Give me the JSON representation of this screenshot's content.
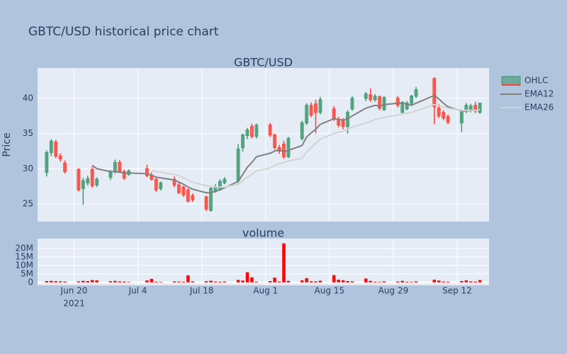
{
  "title": "GBTC/USD historical price chart",
  "chart_data": [
    {
      "type": "candlestick",
      "title": "GBTC/USD",
      "ylabel": "Price",
      "name": "OHLC",
      "increasing_color": "#3d9970",
      "decreasing_color": "#ff4136",
      "x": [
        "2021-06-14",
        "2021-06-15",
        "2021-06-16",
        "2021-06-17",
        "2021-06-18",
        "2021-06-21",
        "2021-06-22",
        "2021-06-23",
        "2021-06-24",
        "2021-06-25",
        "2021-06-28",
        "2021-06-29",
        "2021-06-30",
        "2021-07-01",
        "2021-07-02",
        "2021-07-06",
        "2021-07-07",
        "2021-07-08",
        "2021-07-09",
        "2021-07-12",
        "2021-07-13",
        "2021-07-14",
        "2021-07-15",
        "2021-07-16",
        "2021-07-19",
        "2021-07-20",
        "2021-07-21",
        "2021-07-22",
        "2021-07-23",
        "2021-07-26",
        "2021-07-27",
        "2021-07-28",
        "2021-07-29",
        "2021-07-30",
        "2021-08-02",
        "2021-08-03",
        "2021-08-04",
        "2021-08-05",
        "2021-08-06",
        "2021-08-09",
        "2021-08-10",
        "2021-08-11",
        "2021-08-12",
        "2021-08-13",
        "2021-08-16",
        "2021-08-17",
        "2021-08-18",
        "2021-08-19",
        "2021-08-20",
        "2021-08-23",
        "2021-08-24",
        "2021-08-25",
        "2021-08-26",
        "2021-08-27",
        "2021-08-30",
        "2021-08-31",
        "2021-09-01",
        "2021-09-02",
        "2021-09-03",
        "2021-09-07",
        "2021-09-08",
        "2021-09-09",
        "2021-09-10",
        "2021-09-13",
        "2021-09-14",
        "2021-09-15",
        "2021-09-16",
        "2021-09-17"
      ],
      "open": [
        29.5,
        32.3,
        33.8,
        31.8,
        30.8,
        29.9,
        27.2,
        28.0,
        29.9,
        27.7,
        28.8,
        29.6,
        30.9,
        29.6,
        29.2,
        30.0,
        29.0,
        28.5,
        27.2,
        28.5,
        27.7,
        27.4,
        27.0,
        26.2,
        26.0,
        24.1,
        26.8,
        27.0,
        28.0,
        28.3,
        33.0,
        34.7,
        36.0,
        34.6,
        36.2,
        34.8,
        33.0,
        33.5,
        31.7,
        34.3,
        36.5,
        39.0,
        39.2,
        38.0,
        38.5,
        37.0,
        36.8,
        36.0,
        38.5,
        40.0,
        40.5,
        39.8,
        40.2,
        38.4,
        40.0,
        38.0,
        38.5,
        39.3,
        40.3,
        42.8,
        38.6,
        38.0,
        37.4,
        36.5,
        38.2,
        38.3,
        39.0,
        38.0
      ],
      "high": [
        32.6,
        34.2,
        34.1,
        32.2,
        31.2,
        30.1,
        28.7,
        29.0,
        30.3,
        28.8,
        29.8,
        31.3,
        31.2,
        29.9,
        29.9,
        30.6,
        29.5,
        28.8,
        28.2,
        28.9,
        28.1,
        27.6,
        27.2,
        26.5,
        26.2,
        27.5,
        27.8,
        28.5,
        28.8,
        33.5,
        35.0,
        35.8,
        36.4,
        36.4,
        36.5,
        35.0,
        33.4,
        34.0,
        34.5,
        36.8,
        39.3,
        39.4,
        39.8,
        40.2,
        38.9,
        37.4,
        37.2,
        38.3,
        40.3,
        40.9,
        41.4,
        40.6,
        40.4,
        40.3,
        40.3,
        39.6,
        39.6,
        40.5,
        41.6,
        43.0,
        39.2,
        38.3,
        37.7,
        38.3,
        39.3,
        39.2,
        39.5,
        39.4
      ],
      "low": [
        28.9,
        31.8,
        31.5,
        31.0,
        29.3,
        26.8,
        24.9,
        27.6,
        27.3,
        27.4,
        28.4,
        29.3,
        29.4,
        28.4,
        29.0,
        28.8,
        28.3,
        26.7,
        26.9,
        27.4,
        26.4,
        26.0,
        25.2,
        25.3,
        24.0,
        23.9,
        26.6,
        26.9,
        27.8,
        28.0,
        32.4,
        34.2,
        34.3,
        34.3,
        34.5,
        32.7,
        32.1,
        31.4,
        31.5,
        34.0,
        36.2,
        37.3,
        35.0,
        37.7,
        36.8,
        35.9,
        35.6,
        35.0,
        38.2,
        39.6,
        39.5,
        39.5,
        38.3,
        38.2,
        38.7,
        37.8,
        38.3,
        39.0,
        40.0,
        36.3,
        37.2,
        36.9,
        36.3,
        35.2,
        37.9,
        38.0,
        37.9,
        37.8
      ],
      "close": [
        32.3,
        33.9,
        31.8,
        31.4,
        29.6,
        27.0,
        28.3,
        28.6,
        27.6,
        28.5,
        29.6,
        30.9,
        29.6,
        28.7,
        29.7,
        29.0,
        28.5,
        27.0,
        28.0,
        27.7,
        26.6,
        26.3,
        25.4,
        25.6,
        24.3,
        27.2,
        27.4,
        28.2,
        28.5,
        32.8,
        34.8,
        35.5,
        34.6,
        36.2,
        34.8,
        33.0,
        32.5,
        31.7,
        34.3,
        36.5,
        39.0,
        37.6,
        38.0,
        39.8,
        37.0,
        36.2,
        36.0,
        38.0,
        40.0,
        40.6,
        39.8,
        40.3,
        38.6,
        40.1,
        39.0,
        39.4,
        39.3,
        40.3,
        41.2,
        38.8,
        37.5,
        37.2,
        36.6,
        38.0,
        39.0,
        38.9,
        38.2,
        39.3
      ],
      "series": [
        {
          "name": "EMA12",
          "color": "#808080",
          "values": [
            null,
            null,
            null,
            null,
            null,
            null,
            null,
            null,
            30.5,
            30.0,
            29.6,
            29.6,
            29.5,
            29.4,
            29.4,
            29.3,
            29.1,
            28.8,
            28.7,
            28.4,
            28.1,
            27.8,
            27.4,
            27.1,
            26.6,
            26.6,
            26.8,
            27.0,
            27.3,
            28.2,
            29.2,
            30.2,
            30.9,
            31.7,
            32.2,
            32.5,
            32.7,
            32.4,
            32.6,
            33.3,
            34.5,
            35.1,
            35.6,
            36.3,
            37.1,
            37.0,
            36.9,
            37.1,
            37.5,
            38.6,
            38.8,
            39.0,
            38.9,
            39.1,
            39.3,
            39.3,
            39.2,
            39.0,
            39.3,
            40.4,
            39.9,
            39.3,
            38.8,
            38.2,
            38.2,
            38.3,
            38.3,
            38.4
          ]
        },
        {
          "name": "EMA26",
          "color": "#d3d3d3",
          "values": [
            null,
            null,
            null,
            null,
            null,
            null,
            null,
            null,
            null,
            null,
            null,
            null,
            null,
            null,
            null,
            null,
            29.8,
            29.6,
            29.5,
            29.2,
            29.0,
            28.7,
            28.4,
            28.1,
            27.6,
            27.5,
            27.4,
            27.4,
            27.4,
            27.8,
            28.3,
            28.8,
            29.2,
            29.7,
            30.1,
            30.5,
            30.7,
            30.9,
            31.1,
            31.5,
            32.4,
            33.0,
            33.6,
            34.2,
            35.0,
            35.2,
            35.3,
            35.6,
            35.9,
            36.5,
            36.7,
            37.0,
            37.1,
            37.3,
            37.6,
            37.8,
            37.9,
            38.0,
            38.2,
            39.1,
            39.0,
            38.8,
            38.6,
            38.3,
            38.3,
            38.3,
            38.3,
            38.4
          ]
        }
      ],
      "xlim": [
        "2021-06-12",
        "2021-09-19"
      ],
      "ylim": [
        22.5,
        44.3
      ],
      "yticks": [
        25,
        30,
        35,
        40
      ],
      "grid": true,
      "legend": "top-right"
    },
    {
      "type": "bar",
      "title": "volume",
      "color": "#ff0000",
      "x_year": "2021",
      "x": [
        "2021-06-14",
        "2021-06-15",
        "2021-06-16",
        "2021-06-17",
        "2021-06-18",
        "2021-06-21",
        "2021-06-22",
        "2021-06-23",
        "2021-06-24",
        "2021-06-25",
        "2021-06-28",
        "2021-06-29",
        "2021-06-30",
        "2021-07-01",
        "2021-07-02",
        "2021-07-06",
        "2021-07-07",
        "2021-07-08",
        "2021-07-09",
        "2021-07-12",
        "2021-07-13",
        "2021-07-14",
        "2021-07-15",
        "2021-07-16",
        "2021-07-19",
        "2021-07-20",
        "2021-07-21",
        "2021-07-22",
        "2021-07-23",
        "2021-07-26",
        "2021-07-27",
        "2021-07-28",
        "2021-07-29",
        "2021-07-30",
        "2021-08-02",
        "2021-08-03",
        "2021-08-04",
        "2021-08-05",
        "2021-08-06",
        "2021-08-09",
        "2021-08-10",
        "2021-08-11",
        "2021-08-12",
        "2021-08-13",
        "2021-08-16",
        "2021-08-17",
        "2021-08-18",
        "2021-08-19",
        "2021-08-20",
        "2021-08-23",
        "2021-08-24",
        "2021-08-25",
        "2021-08-26",
        "2021-08-27",
        "2021-08-30",
        "2021-08-31",
        "2021-09-01",
        "2021-09-02",
        "2021-09-03",
        "2021-09-07",
        "2021-09-08",
        "2021-09-09",
        "2021-09-10",
        "2021-09-13",
        "2021-09-14",
        "2021-09-15",
        "2021-09-16",
        "2021-09-17"
      ],
      "values": [
        800000,
        900000,
        700000,
        600000,
        500000,
        600000,
        900000,
        800000,
        1400000,
        1200000,
        700000,
        900000,
        600000,
        500000,
        300000,
        1200000,
        2100000,
        400000,
        300000,
        600000,
        500000,
        400000,
        4200000,
        600000,
        700000,
        1000000,
        500000,
        400000,
        500000,
        1500000,
        1100000,
        6000000,
        3000000,
        400000,
        800000,
        2800000,
        500000,
        23000000,
        900000,
        1200000,
        2500000,
        700000,
        600000,
        1000000,
        4300000,
        1600000,
        1300000,
        800000,
        600000,
        2300000,
        900000,
        400000,
        300000,
        600000,
        500000,
        900000,
        400000,
        300000,
        600000,
        1600000,
        1100000,
        500000,
        400000,
        800000,
        1200000,
        600000,
        500000,
        1400000
      ],
      "xlim": [
        "2021-06-12",
        "2021-09-19"
      ],
      "xticks": [
        {
          "value": "2021-06-20",
          "label": "Jun 20"
        },
        {
          "value": "2021-07-04",
          "label": "Jul 4"
        },
        {
          "value": "2021-07-18",
          "label": "Jul 18"
        },
        {
          "value": "2021-08-01",
          "label": "Aug 1"
        },
        {
          "value": "2021-08-15",
          "label": "Aug 15"
        },
        {
          "value": "2021-08-29",
          "label": "Aug 29"
        },
        {
          "value": "2021-09-12",
          "label": "Sep 12"
        }
      ],
      "ylim": [
        -1700000,
        25800000
      ],
      "yticks": [
        0,
        {
          "value": 5000000,
          "label": "5M"
        },
        {
          "value": 10000000,
          "label": "10M"
        },
        {
          "value": 15000000,
          "label": "15M"
        },
        {
          "value": 20000000,
          "label": "20M"
        }
      ],
      "grid": true
    }
  ]
}
